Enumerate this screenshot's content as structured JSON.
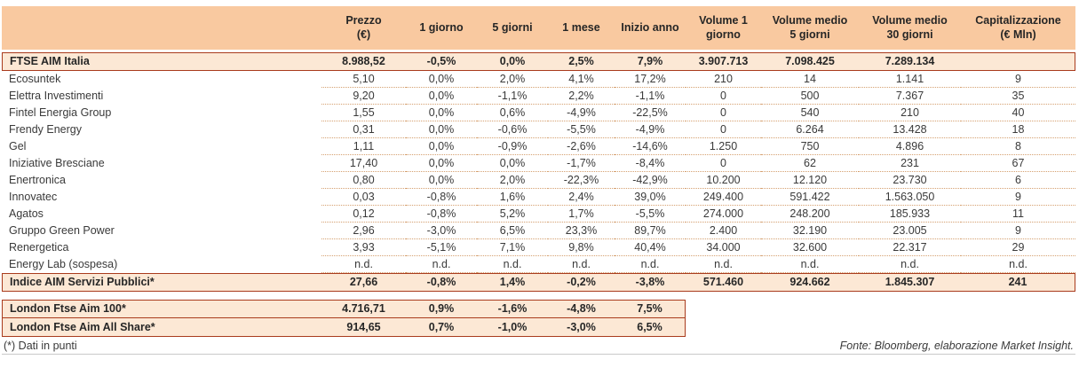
{
  "colors": {
    "header_bg": "#F9C9A0",
    "highlight_bg": "#FCE8D5",
    "accent": "#A93B1D",
    "dot_color": "#D5A070"
  },
  "table": {
    "columns": [
      "",
      "Prezzo\n(€)",
      "1 giorno",
      "5 giorni",
      "1 mese",
      "Inizio anno",
      "Volume 1\ngiorno",
      "Volume medio\n5 giorni",
      "Volume medio\n30 giorni",
      "Capitalizzazione\n(€ Mln)"
    ],
    "rows": [
      {
        "type": "index",
        "span": 10,
        "name": "FTSE AIM Italia",
        "values": [
          "8.988,52",
          "-0,5%",
          "0,0%",
          "2,5%",
          "7,9%",
          "3.907.713",
          "7.098.425",
          "7.289.134",
          ""
        ]
      },
      {
        "type": "stock",
        "name": "Ecosuntek",
        "values": [
          "5,10",
          "0,0%",
          "2,0%",
          "4,1%",
          "17,2%",
          "210",
          "14",
          "1.141",
          "9"
        ]
      },
      {
        "type": "stock",
        "name": "Elettra Investimenti",
        "values": [
          "9,20",
          "0,0%",
          "-1,1%",
          "2,2%",
          "-1,1%",
          "0",
          "500",
          "7.367",
          "35"
        ]
      },
      {
        "type": "stock",
        "name": "Fintel Energia Group",
        "values": [
          "1,55",
          "0,0%",
          "0,6%",
          "-4,9%",
          "-22,5%",
          "0",
          "540",
          "210",
          "40"
        ]
      },
      {
        "type": "stock",
        "name": "Frendy Energy",
        "values": [
          "0,31",
          "0,0%",
          "-0,6%",
          "-5,5%",
          "-4,9%",
          "0",
          "6.264",
          "13.428",
          "18"
        ]
      },
      {
        "type": "stock",
        "name": "Gel",
        "values": [
          "1,11",
          "0,0%",
          "-0,9%",
          "-2,6%",
          "-14,6%",
          "1.250",
          "750",
          "4.896",
          "8"
        ]
      },
      {
        "type": "stock",
        "name": "Iniziative Bresciane",
        "values": [
          "17,40",
          "0,0%",
          "0,0%",
          "-1,7%",
          "-8,4%",
          "0",
          "62",
          "231",
          "67"
        ]
      },
      {
        "type": "stock",
        "name": "Enertronica",
        "values": [
          "0,80",
          "0,0%",
          "2,0%",
          "-22,3%",
          "-42,9%",
          "10.200",
          "12.120",
          "23.730",
          "6"
        ]
      },
      {
        "type": "stock",
        "name": "Innovatec",
        "values": [
          "0,03",
          "-0,8%",
          "1,6%",
          "2,4%",
          "39,0%",
          "249.400",
          "591.422",
          "1.563.050",
          "9"
        ]
      },
      {
        "type": "stock",
        "name": "Agatos",
        "values": [
          "0,12",
          "-0,8%",
          "5,2%",
          "1,7%",
          "-5,5%",
          "274.000",
          "248.200",
          "185.933",
          "11"
        ]
      },
      {
        "type": "stock",
        "name": "Gruppo Green Power",
        "values": [
          "2,96",
          "-3,0%",
          "6,5%",
          "23,3%",
          "89,7%",
          "2.400",
          "32.190",
          "23.005",
          "9"
        ]
      },
      {
        "type": "stock",
        "name": "Renergetica",
        "values": [
          "3,93",
          "-5,1%",
          "7,1%",
          "9,8%",
          "40,4%",
          "34.000",
          "32.600",
          "22.317",
          "29"
        ]
      },
      {
        "type": "stock",
        "name": "Energy Lab (sospesa)",
        "values": [
          "n.d.",
          "n.d.",
          "n.d.",
          "n.d.",
          "n.d.",
          "n.d.",
          "n.d.",
          "n.d.",
          "n.d."
        ]
      },
      {
        "type": "index",
        "span": 10,
        "name": "Indice AIM Servizi Pubblici*",
        "values": [
          "27,66",
          "-0,8%",
          "1,4%",
          "-0,2%",
          "-3,8%",
          "571.460",
          "924.662",
          "1.845.307",
          "241"
        ]
      },
      {
        "type": "spacer"
      },
      {
        "type": "index",
        "span": 6,
        "name": "London Ftse Aim 100*",
        "values": [
          "4.716,71",
          "0,9%",
          "-1,6%",
          "-4,8%",
          "7,5%",
          "",
          "",
          "",
          ""
        ]
      },
      {
        "type": "index",
        "span": 6,
        "name": "London Ftse Aim All Share*",
        "values": [
          "914,65",
          "0,7%",
          "-1,0%",
          "-3,0%",
          "6,5%",
          "",
          "",
          "",
          ""
        ]
      }
    ]
  },
  "footer": {
    "note": "(*) Dati in punti",
    "source": "Fonte: Bloomberg, elaborazione Market Insight."
  }
}
